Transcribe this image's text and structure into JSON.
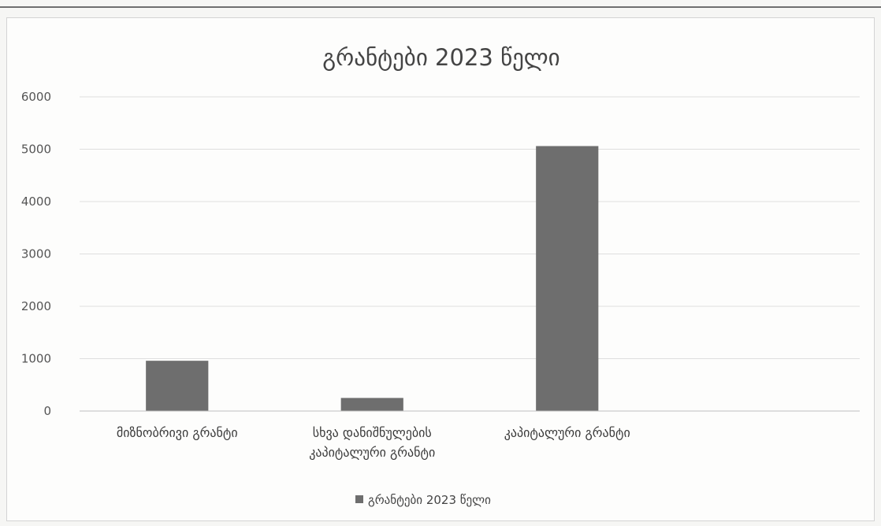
{
  "chart_data": {
    "type": "bar",
    "title": "გრანტები 2023 წელი",
    "categories": [
      [
        "მიზნობრივი გრანტი"
      ],
      [
        "სხვა დანიშნულების",
        "კაპიტალური გრანტი"
      ],
      [
        "კაპიტალური გრანტი"
      ],
      [
        ""
      ]
    ],
    "series": [
      {
        "name": "გრანტები 2023 წელი",
        "values": [
          960,
          250,
          5060,
          null
        ]
      }
    ],
    "ylim": [
      0,
      6000
    ],
    "yticks": [
      0,
      1000,
      2000,
      3000,
      4000,
      5000,
      6000
    ],
    "grid": true,
    "legend": "bottom",
    "colors": {
      "bar": "#6e6e6e",
      "grid": "#dedede",
      "axis": "#bfbfbf"
    }
  }
}
